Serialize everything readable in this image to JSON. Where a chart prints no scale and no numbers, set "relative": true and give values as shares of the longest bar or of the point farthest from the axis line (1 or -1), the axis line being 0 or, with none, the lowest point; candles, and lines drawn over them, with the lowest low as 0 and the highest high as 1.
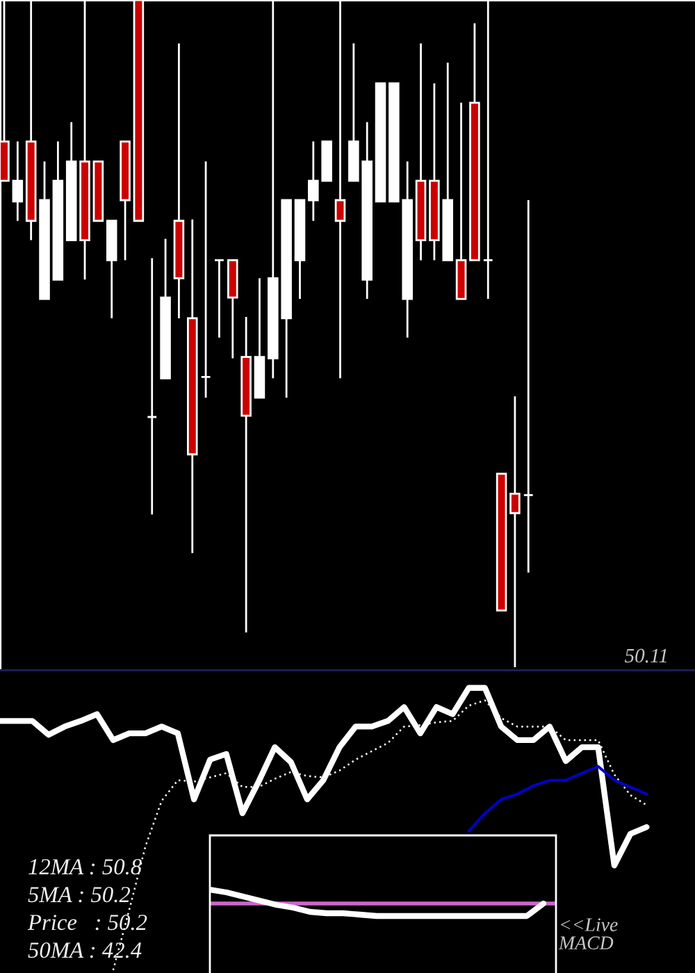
{
  "chart_data": [
    {
      "type": "candlestick",
      "relative": true,
      "categories": [
        null,
        null,
        null,
        null,
        null,
        null,
        null,
        null,
        null,
        null,
        null,
        null,
        null,
        null,
        null,
        null,
        null,
        null,
        null,
        null,
        null,
        null,
        null,
        null,
        null,
        null,
        null,
        null,
        null,
        null,
        null,
        null,
        null,
        null,
        null,
        null,
        null,
        null,
        null,
        null
      ],
      "ohlc": [
        [
          0.788,
          1.0,
          0.729,
          0.729
        ],
        [
          0.698,
          0.788,
          0.669,
          0.729
        ],
        [
          0.788,
          1.0,
          0.64,
          0.669
        ],
        [
          0.552,
          0.758,
          0.552,
          0.7
        ],
        [
          0.581,
          0.788,
          0.581,
          0.729
        ],
        [
          0.64,
          0.817,
          0.64,
          0.758
        ],
        [
          0.758,
          1.0,
          0.581,
          0.64
        ],
        [
          0.758,
          0.758,
          0.669,
          0.669
        ],
        [
          0.61,
          0.669,
          0.523,
          0.669
        ],
        [
          0.788,
          0.788,
          0.61,
          0.7
        ],
        [
          1.0,
          1.0,
          0.669,
          0.669
        ],
        [
          0.375,
          0.613,
          0.229,
          0.375
        ],
        [
          0.433,
          0.642,
          0.433,
          0.554
        ],
        [
          0.669,
          0.935,
          0.523,
          0.583
        ],
        [
          0.523,
          0.671,
          0.171,
          0.319
        ],
        [
          0.435,
          0.758,
          0.404,
          0.435
        ],
        [
          0.61,
          0.61,
          0.494,
          0.61
        ],
        [
          0.61,
          0.61,
          0.463,
          0.554
        ],
        [
          0.465,
          0.525,
          0.052,
          0.377
        ],
        [
          0.404,
          0.583,
          0.404,
          0.465
        ],
        [
          0.463,
          1.0,
          0.433,
          0.583
        ],
        [
          0.523,
          0.7,
          0.404,
          0.7
        ],
        [
          0.61,
          0.7,
          0.552,
          0.7
        ],
        [
          0.7,
          0.788,
          0.669,
          0.729
        ],
        [
          0.729,
          0.788,
          0.729,
          0.788
        ],
        [
          0.7,
          1.0,
          0.433,
          0.669
        ],
        [
          0.729,
          0.935,
          0.729,
          0.788
        ],
        [
          0.581,
          0.817,
          0.552,
          0.758
        ],
        [
          0.698,
          0.875,
          0.698,
          0.875
        ],
        [
          0.698,
          0.875,
          0.698,
          0.875
        ],
        [
          0.552,
          0.758,
          0.494,
          0.7
        ],
        [
          0.729,
          0.935,
          0.61,
          0.64
        ],
        [
          0.729,
          0.875,
          0.61,
          0.64
        ],
        [
          0.61,
          0.906,
          0.61,
          0.7
        ],
        [
          0.61,
          0.846,
          0.552,
          0.552
        ],
        [
          0.846,
          0.965,
          0.61,
          0.61
        ],
        [
          0.61,
          1.0,
          0.552,
          0.61
        ],
        [
          0.29,
          0.29,
          0.085,
          0.085
        ],
        [
          0.26,
          0.406,
          0.0,
          0.231
        ],
        [
          0.258,
          0.7,
          0.142,
          0.258
        ]
      ],
      "colors": [
        "#cc0000",
        "#ffffff",
        "#cc0000",
        "#ffffff",
        "#ffffff",
        "#ffffff",
        "#cc0000",
        "#cc0000",
        "#ffffff",
        "#cc0000",
        "#cc0000",
        "#ffffff",
        "#ffffff",
        "#cc0000",
        "#cc0000",
        "#ffffff",
        "#ffffff",
        "#cc0000",
        "#cc0000",
        "#ffffff",
        "#ffffff",
        "#ffffff",
        "#ffffff",
        "#ffffff",
        "#ffffff",
        "#cc0000",
        "#ffffff",
        "#ffffff",
        "#ffffff",
        "#ffffff",
        "#ffffff",
        "#cc0000",
        "#cc0000",
        "#ffffff",
        "#cc0000",
        "#cc0000",
        "#ffffff",
        "#cc0000",
        "#cc0000",
        "#ffffff"
      ],
      "annotations": [
        "50.11"
      ]
    },
    {
      "type": "line",
      "relative": true,
      "categories": [
        null,
        null,
        null,
        null,
        null,
        null,
        null,
        null,
        null,
        null,
        null,
        null,
        null,
        null,
        null,
        null,
        null,
        null,
        null,
        null,
        null,
        null,
        null,
        null,
        null,
        null,
        null,
        null,
        null,
        null,
        null,
        null,
        null,
        null,
        null,
        null,
        null,
        null,
        null,
        null,
        null
      ],
      "series": [
        {
          "color": "#ffffff",
          "line_style": "solid",
          "values": [
            0.883,
            0.883,
            0.883,
            0.834,
            0.863,
            0.883,
            0.907,
            0.815,
            0.839,
            0.839,
            0.863,
            0.839,
            0.605,
            0.746,
            0.766,
            0.556,
            0.668,
            0.79,
            0.737,
            0.605,
            0.673,
            0.79,
            0.863,
            0.863,
            0.883,
            0.932,
            0.839,
            0.932,
            0.907,
            1.0,
            1.0,
            0.863,
            0.815,
            0.815,
            0.863,
            0.741,
            0.79,
            0.79,
            0.371,
            0.483,
            0.507
          ]
        },
        {
          "color": "#ffffff",
          "line_style": "dotted",
          "values": [
            null,
            null,
            null,
            null,
            null,
            null,
            null,
            0,
            0.215,
            0.439,
            0.6,
            0.673,
            0.668,
            0.683,
            0.698,
            0.649,
            0.649,
            0.678,
            0.702,
            0.688,
            0.683,
            0.707,
            0.746,
            0.776,
            0.805,
            0.863,
            0.868,
            0.878,
            0.883,
            0.937,
            0.956,
            0.893,
            0.863,
            0.863,
            0.863,
            0.815,
            0.815,
            0.815,
            0.693,
            0.62,
            0.585
          ]
        },
        {
          "color": "#0000cc",
          "line_style": "solid",
          "values": [
            null,
            null,
            null,
            null,
            null,
            null,
            null,
            null,
            null,
            null,
            null,
            null,
            null,
            null,
            null,
            null,
            null,
            null,
            null,
            null,
            null,
            null,
            null,
            null,
            null,
            null,
            null,
            null,
            null,
            0.493,
            0.556,
            0.605,
            0.624,
            0.654,
            0.673,
            0.673,
            0.698,
            0.722,
            0.673,
            0.649,
            0.624
          ]
        }
      ],
      "annotations": [
        "12MA : 50.8",
        "5MA : 50.2",
        "Price   : 50.2",
        "50MA : 42.4"
      ]
    },
    {
      "type": "line",
      "relative": true,
      "categories": [
        null,
        null,
        null,
        null,
        null,
        null,
        null,
        null,
        null,
        null,
        null,
        null,
        null,
        null,
        null,
        null,
        null,
        null,
        null,
        null,
        null
      ],
      "series": [
        {
          "color": "#ffffff",
          "line_style": "solid",
          "values": [
            1.0,
            0.8,
            0.5,
            0.2,
            -0.1,
            -0.3,
            -0.6,
            -0.7,
            -0.7,
            -0.8,
            -0.9,
            -0.9,
            -0.9,
            -0.9,
            -0.9,
            -0.9,
            -0.9,
            -0.9,
            -0.9,
            -0.9,
            0.0
          ]
        }
      ],
      "ref_lines": [
        {
          "axis": "y",
          "value": 0,
          "color": "#cc66cc"
        }
      ],
      "annotations": [
        "<<Live\nMACD"
      ]
    }
  ]
}
